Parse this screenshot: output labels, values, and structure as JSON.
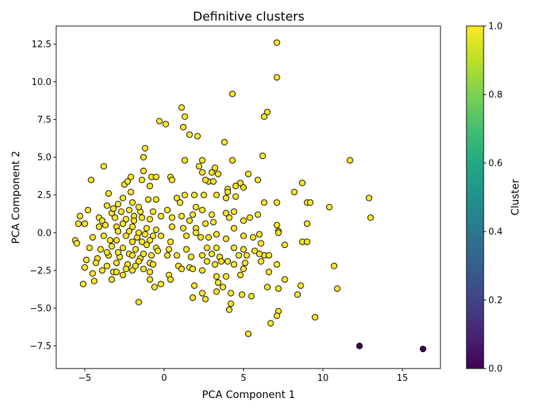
{
  "chart_data": {
    "type": "scatter",
    "title": "Definitive clusters",
    "xlabel": "PCA Component 1",
    "ylabel": "PCA Component 2",
    "xlim": [
      -6.8,
      17.4
    ],
    "ylim": [
      -9.0,
      13.7
    ],
    "xticks": [
      -5,
      0,
      5,
      10,
      15
    ],
    "yticks": [
      -7.5,
      -5.0,
      -2.5,
      0.0,
      2.5,
      5.0,
      7.5,
      10.0,
      12.5
    ],
    "xtick_labels": [
      "−5",
      "0",
      "5",
      "10",
      "15"
    ],
    "ytick_labels": [
      "−7.5",
      "−5.0",
      "−2.5",
      "0.0",
      "2.5",
      "5.0",
      "7.5",
      "10.0",
      "12.5"
    ],
    "grid": false,
    "colorbar": {
      "label": "Cluster",
      "range": [
        0.0,
        1.0
      ],
      "ticks": [
        0.0,
        0.2,
        0.4,
        0.6,
        0.8,
        1.0
      ],
      "tick_labels": [
        "0.0",
        "0.2",
        "0.4",
        "0.6",
        "0.8",
        "1.0"
      ],
      "colormap": "viridis"
    },
    "marker_edge_color": "#000000",
    "series": [
      {
        "cluster": 1,
        "color": "#fde725",
        "points": [
          [
            7.1,
            12.6
          ],
          [
            7.1,
            10.3
          ],
          [
            4.3,
            9.2
          ],
          [
            1.1,
            8.3
          ],
          [
            6.5,
            8.0
          ],
          [
            1.2,
            7.0
          ],
          [
            1.3,
            7.7
          ],
          [
            6.3,
            7.7
          ],
          [
            -0.3,
            7.4
          ],
          [
            0.1,
            7.2
          ],
          [
            1.6,
            6.5
          ],
          [
            2.1,
            6.4
          ],
          [
            3.8,
            6.0
          ],
          [
            -1.2,
            5.6
          ],
          [
            6.2,
            5.1
          ],
          [
            -1.3,
            5.0
          ],
          [
            1.3,
            4.8
          ],
          [
            2.4,
            4.8
          ],
          [
            4.3,
            4.8
          ],
          [
            11.7,
            4.8
          ],
          [
            -3.8,
            4.4
          ],
          [
            2.2,
            4.4
          ],
          [
            -1.3,
            4.1
          ],
          [
            2.4,
            4.0
          ],
          [
            3.4,
            3.9
          ],
          [
            5.3,
            3.9
          ],
          [
            -2.1,
            3.7
          ],
          [
            -0.8,
            3.7
          ],
          [
            -0.5,
            3.7
          ],
          [
            0.4,
            3.7
          ],
          [
            -4.6,
            3.5
          ],
          [
            -1.4,
            3.5
          ],
          [
            0.5,
            3.5
          ],
          [
            2.8,
            3.4
          ],
          [
            4.8,
            3.3
          ],
          [
            5.9,
            3.5
          ],
          [
            3.1,
            3.4
          ],
          [
            4.5,
            3.1
          ],
          [
            8.7,
            3.3
          ],
          [
            5.0,
            3.0
          ],
          [
            -2.5,
            3.2
          ],
          [
            -2.3,
            3.4
          ],
          [
            -0.9,
            3.1
          ],
          [
            4.0,
            2.9
          ],
          [
            4.0,
            2.7
          ],
          [
            8.2,
            2.7
          ],
          [
            -3.5,
            2.6
          ],
          [
            -2.1,
            2.7
          ],
          [
            1.3,
            2.5
          ],
          [
            1.9,
            2.5
          ],
          [
            2.5,
            2.5
          ],
          [
            3.3,
            2.5
          ],
          [
            3.9,
            2.3
          ],
          [
            4.5,
            2.4
          ],
          [
            6.3,
            2.0
          ],
          [
            7.1,
            2.0
          ],
          [
            9.0,
            2.0
          ],
          [
            9.2,
            2.0
          ],
          [
            10.4,
            1.7
          ],
          [
            12.9,
            2.3
          ],
          [
            -5.3,
            1.1
          ],
          [
            -4.8,
            1.5
          ],
          [
            -4.1,
            1.0
          ],
          [
            -3.3,
            1.3
          ],
          [
            -1.9,
            1.1
          ],
          [
            -1.5,
            1.4
          ],
          [
            -0.7,
            1.4
          ],
          [
            0.2,
            1.5
          ],
          [
            1.1,
            1.1
          ],
          [
            1.8,
            1.2
          ],
          [
            2.4,
            1.5
          ],
          [
            3.0,
            1.2
          ],
          [
            3.9,
            1.3
          ],
          [
            5.0,
            0.8
          ],
          [
            5.4,
            1.0
          ],
          [
            5.9,
            1.2
          ],
          [
            13.0,
            1.0
          ],
          [
            -5.4,
            0.6
          ],
          [
            -5.0,
            0.6
          ],
          [
            -4.1,
            0.4
          ],
          [
            -3.7,
            0.5
          ],
          [
            -3.0,
            0.4
          ],
          [
            -2.6,
            0.6
          ],
          [
            -2.0,
            0.4
          ],
          [
            -1.1,
            0.3
          ],
          [
            -0.5,
            0.2
          ],
          [
            0.5,
            0.4
          ],
          [
            1.2,
            0.3
          ],
          [
            2.0,
            0.3
          ],
          [
            2.6,
            0.6
          ],
          [
            3.1,
            0.7
          ],
          [
            4.4,
            0.3
          ],
          [
            7.1,
            0.5
          ],
          [
            9.0,
            0.6
          ],
          [
            -5.6,
            -0.5
          ],
          [
            -4.5,
            -0.3
          ],
          [
            -3.8,
            -0.2
          ],
          [
            -3.0,
            -0.5
          ],
          [
            -2.4,
            -0.2
          ],
          [
            -1.7,
            -0.3
          ],
          [
            -0.9,
            -0.5
          ],
          [
            -0.2,
            -0.2
          ],
          [
            0.4,
            -0.6
          ],
          [
            1.4,
            -0.2
          ],
          [
            2.3,
            -0.3
          ],
          [
            3.3,
            -0.1
          ],
          [
            3.9,
            -0.4
          ],
          [
            5.0,
            -0.2
          ],
          [
            5.6,
            -0.3
          ],
          [
            6.0,
            -0.1
          ],
          [
            7.2,
            0.1
          ],
          [
            7.2,
            0.0
          ],
          [
            8.7,
            -0.6
          ],
          [
            9.0,
            -0.6
          ],
          [
            -5.5,
            -0.7
          ],
          [
            -4.7,
            -1.0
          ],
          [
            -4.0,
            -1.1
          ],
          [
            -3.3,
            -0.9
          ],
          [
            -2.6,
            -1.0
          ],
          [
            -1.8,
            -1.1
          ],
          [
            -1.1,
            -0.8
          ],
          [
            -0.5,
            -1.0
          ],
          [
            0.3,
            -1.1
          ],
          [
            1.4,
            -1.1
          ],
          [
            2.7,
            -1.0
          ],
          [
            3.3,
            -1.0
          ],
          [
            4.4,
            -1.0
          ],
          [
            5.0,
            -1.1
          ],
          [
            6.1,
            -0.7
          ],
          [
            7.6,
            -0.8
          ],
          [
            -4.9,
            -1.8
          ],
          [
            -4.2,
            -1.7
          ],
          [
            -3.5,
            -1.5
          ],
          [
            -2.8,
            -1.6
          ],
          [
            -2.2,
            -1.4
          ],
          [
            -1.5,
            -1.7
          ],
          [
            -0.8,
            -1.5
          ],
          [
            0.2,
            -1.5
          ],
          [
            0.8,
            -1.5
          ],
          [
            1.7,
            -1.6
          ],
          [
            2.4,
            -1.5
          ],
          [
            3.0,
            -1.4
          ],
          [
            3.5,
            -1.6
          ],
          [
            4.7,
            -1.5
          ],
          [
            5.2,
            -1.5
          ],
          [
            6.3,
            -1.5
          ],
          [
            6.6,
            -1.5
          ],
          [
            -5.0,
            -2.3
          ],
          [
            -4.3,
            -2.0
          ],
          [
            -3.6,
            -2.2
          ],
          [
            -3.0,
            -2.0
          ],
          [
            -2.3,
            -2.1
          ],
          [
            -1.6,
            -1.9
          ],
          [
            -0.9,
            -2.0
          ],
          [
            0.9,
            -2.2
          ],
          [
            1.6,
            -2.3
          ],
          [
            2.7,
            -1.9
          ],
          [
            3.2,
            -2.1
          ],
          [
            4.0,
            -1.9
          ],
          [
            4.4,
            -2.1
          ],
          [
            5.1,
            -2.0
          ],
          [
            6.1,
            -1.9
          ],
          [
            7.1,
            -2.1
          ],
          [
            10.7,
            -2.2
          ],
          [
            -4.5,
            -2.7
          ],
          [
            -3.9,
            -2.5
          ],
          [
            -3.2,
            -2.6
          ],
          [
            -2.6,
            -2.8
          ],
          [
            -2.0,
            -2.5
          ],
          [
            -0.9,
            -2.6
          ],
          [
            0.3,
            -2.8
          ],
          [
            1.1,
            -2.4
          ],
          [
            1.8,
            -2.4
          ],
          [
            2.4,
            -2.5
          ],
          [
            3.3,
            -2.9
          ],
          [
            3.9,
            -2.9
          ],
          [
            4.8,
            -2.8
          ],
          [
            5.0,
            -2.4
          ],
          [
            6.6,
            -2.6
          ],
          [
            7.6,
            -3.1
          ],
          [
            -5.1,
            -3.4
          ],
          [
            -4.4,
            -3.2
          ],
          [
            -3.3,
            -3.1
          ],
          [
            -0.9,
            -3.1
          ],
          [
            -0.2,
            -3.4
          ],
          [
            0.4,
            -3.1
          ],
          [
            1.9,
            -3.5
          ],
          [
            3.4,
            -3.3
          ],
          [
            3.7,
            -3.6
          ],
          [
            6.5,
            -3.6
          ],
          [
            7.2,
            -3.7
          ],
          [
            8.6,
            -3.5
          ],
          [
            10.9,
            -3.7
          ],
          [
            -1.6,
            -4.6
          ],
          [
            1.8,
            -4.3
          ],
          [
            2.4,
            -4.0
          ],
          [
            2.6,
            -4.4
          ],
          [
            3.3,
            -3.9
          ],
          [
            4.2,
            -4.0
          ],
          [
            4.9,
            -4.1
          ],
          [
            5.5,
            -4.2
          ],
          [
            8.4,
            -4.1
          ],
          [
            4.2,
            -4.7
          ],
          [
            4.1,
            -5.1
          ],
          [
            7.2,
            -5.2
          ],
          [
            7.1,
            -5.5
          ],
          [
            9.5,
            -5.6
          ],
          [
            6.7,
            -6.0
          ],
          [
            5.3,
            -6.7
          ],
          [
            -2.6,
            2.3
          ],
          [
            -2.9,
            1.9
          ],
          [
            -3.2,
            1.6
          ],
          [
            -3.6,
            1.8
          ],
          [
            -2.0,
            2.0
          ],
          [
            -1.6,
            1.7
          ],
          [
            -1.0,
            2.2
          ],
          [
            -0.5,
            2.2
          ],
          [
            -2.2,
            1.5
          ],
          [
            -2.7,
            1.4
          ],
          [
            -3.1,
            1.0
          ],
          [
            -3.9,
            0.8
          ],
          [
            -2.4,
            0.9
          ],
          [
            -1.9,
            0.8
          ],
          [
            -1.4,
            1.0
          ],
          [
            -0.9,
            0.9
          ],
          [
            -0.2,
            1.1
          ],
          [
            -2.9,
            0.1
          ],
          [
            -2.2,
            0.1
          ],
          [
            -1.6,
            0.0
          ],
          [
            -1.2,
            -0.1
          ],
          [
            -3.4,
            -0.5
          ],
          [
            -2.0,
            -0.6
          ],
          [
            -1.4,
            -0.6
          ],
          [
            -0.7,
            -0.2
          ],
          [
            -3.6,
            -1.3
          ],
          [
            -2.9,
            -1.3
          ],
          [
            -2.0,
            -1.5
          ],
          [
            -1.3,
            -1.4
          ],
          [
            -0.4,
            -1.2
          ],
          [
            -3.0,
            -2.6
          ],
          [
            -2.4,
            -2.4
          ],
          [
            -1.8,
            -2.2
          ],
          [
            -1.3,
            -2.4
          ],
          [
            -0.7,
            -2.1
          ],
          [
            0.8,
            2.3
          ],
          [
            1.0,
            2.0
          ],
          [
            0.5,
            1.0
          ],
          [
            1.6,
            0.8
          ],
          [
            2.0,
            0.0
          ],
          [
            2.8,
            -0.3
          ],
          [
            3.6,
            -1.9
          ],
          [
            4.1,
            1.0
          ],
          [
            4.4,
            1.4
          ],
          [
            5.7,
            -1.2
          ],
          [
            6.0,
            -1.4
          ],
          [
            2.0,
            1.7
          ],
          [
            3.0,
            4.0
          ],
          [
            3.2,
            4.3
          ],
          [
            2.6,
            3.5
          ],
          [
            -0.6,
            -3.6
          ]
        ]
      },
      {
        "cluster": 0,
        "color": "#440154",
        "points": [
          [
            12.3,
            -7.5
          ],
          [
            16.3,
            -7.7
          ]
        ]
      }
    ]
  }
}
